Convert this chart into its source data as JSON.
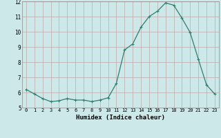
{
  "x": [
    0,
    1,
    2,
    3,
    4,
    5,
    6,
    7,
    8,
    9,
    10,
    11,
    12,
    13,
    14,
    15,
    16,
    17,
    18,
    19,
    20,
    21,
    22,
    23
  ],
  "y": [
    6.2,
    5.9,
    5.6,
    5.4,
    5.45,
    5.6,
    5.5,
    5.5,
    5.4,
    5.5,
    5.65,
    6.6,
    8.8,
    9.2,
    10.3,
    11.0,
    11.35,
    11.9,
    11.75,
    10.9,
    9.95,
    8.2,
    6.5,
    5.9
  ],
  "xlabel": "Humidex (Indice chaleur)",
  "ylim": [
    5,
    12
  ],
  "xlim": [
    -0.5,
    23.5
  ],
  "yticks": [
    5,
    6,
    7,
    8,
    9,
    10,
    11,
    12
  ],
  "xticks": [
    0,
    1,
    2,
    3,
    4,
    5,
    6,
    7,
    8,
    9,
    10,
    11,
    12,
    13,
    14,
    15,
    16,
    17,
    18,
    19,
    20,
    21,
    22,
    23
  ],
  "line_color": "#2e7d6e",
  "marker": "+",
  "marker_size": 3.5,
  "bg_color": "#cce8e8",
  "grid_color": "#c0a8a8",
  "axes_bg": "#cce8e8",
  "tick_fontsize": 5.0,
  "xlabel_fontsize": 6.5
}
